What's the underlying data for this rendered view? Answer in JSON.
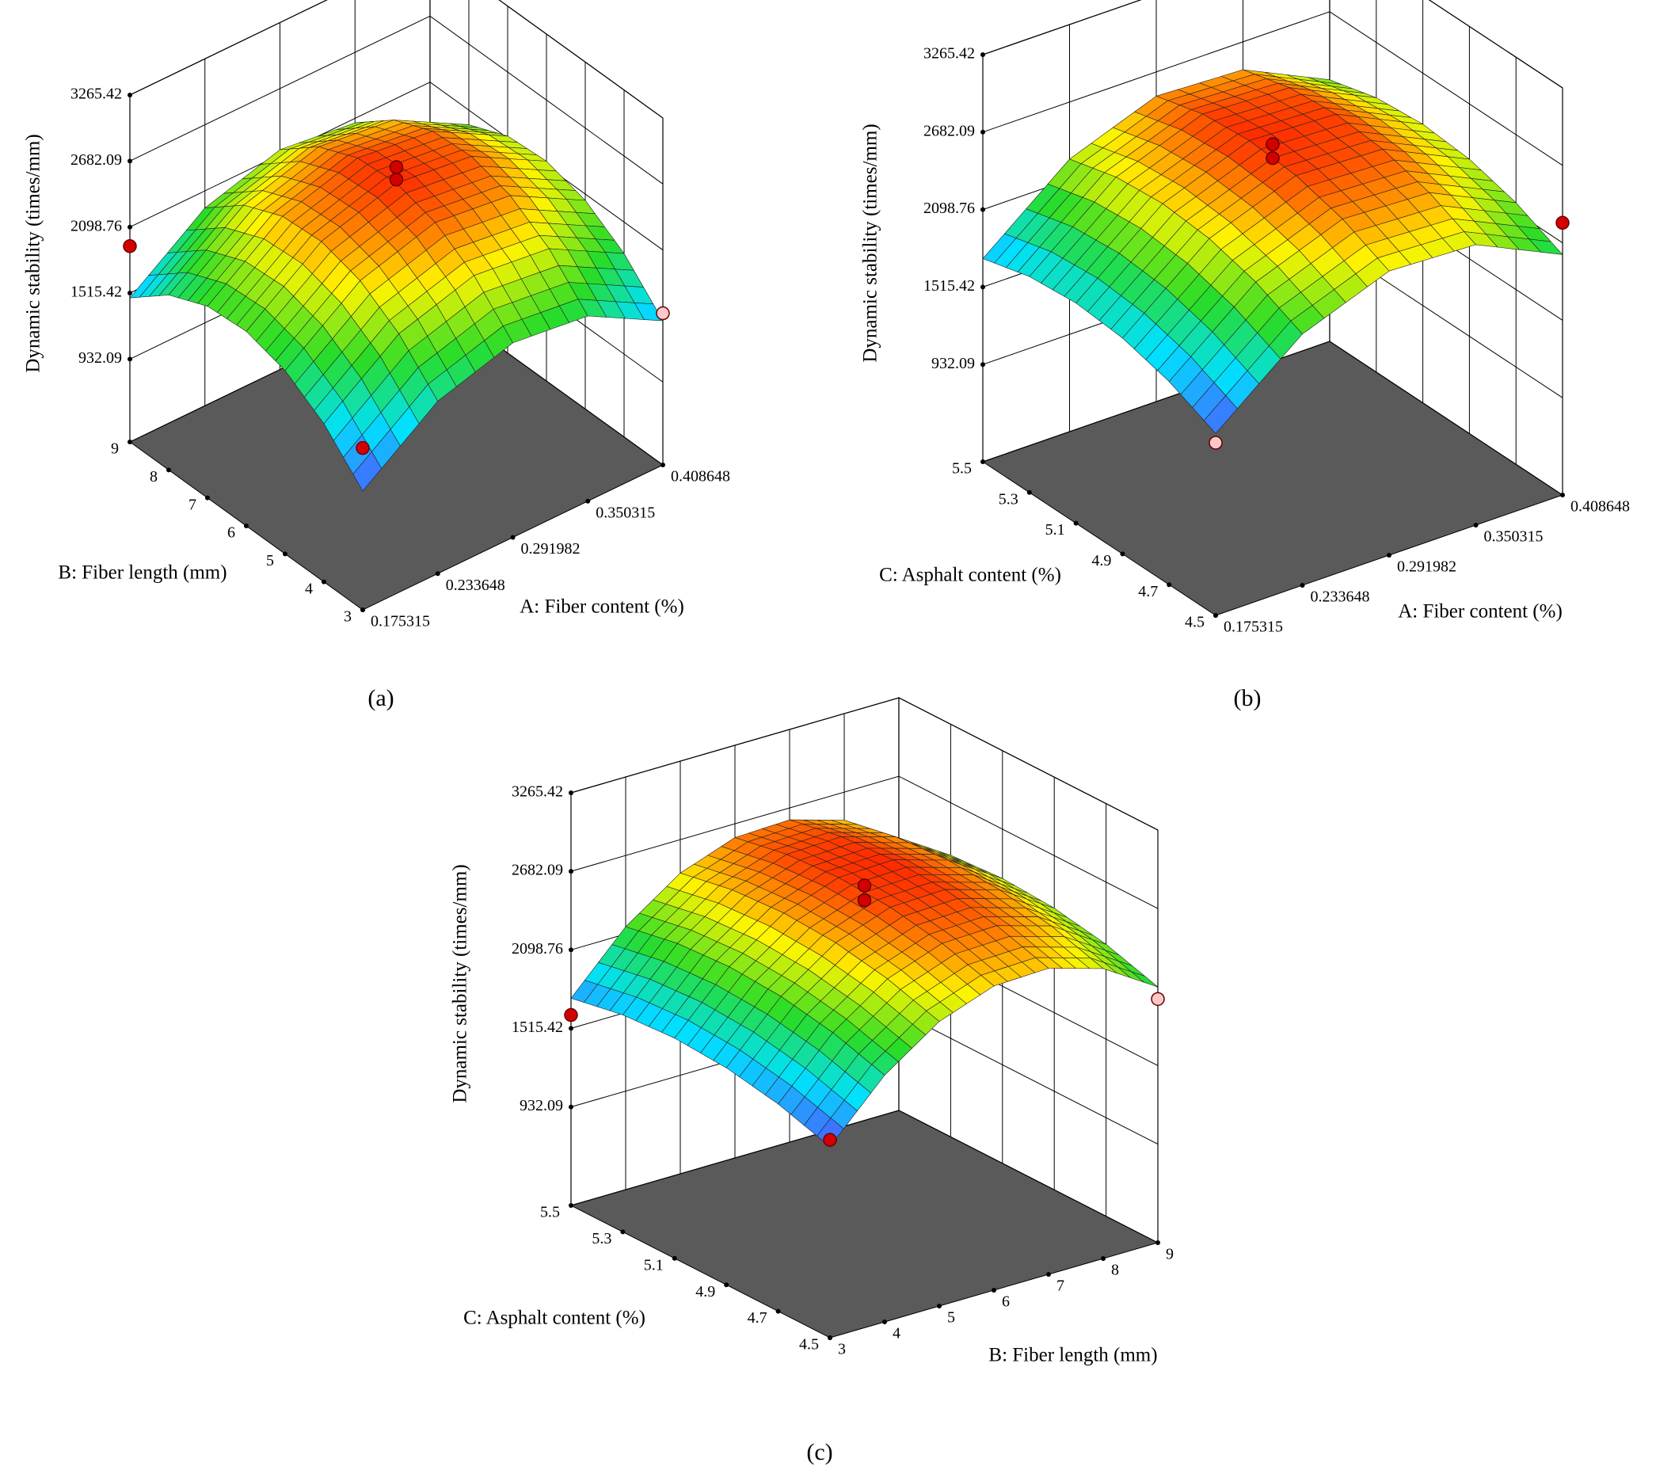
{
  "chart_data": [
    {
      "type": "surface3d",
      "label": "(a)",
      "xlabel": "A: Fiber content (%)",
      "ylabel": "B: Fiber length (mm)",
      "zlabel": "Dynamic stability (times/mm)",
      "xlim": [
        0.175315,
        0.408648
      ],
      "xticks": [
        0.175315,
        0.233648,
        0.291982,
        0.350315,
        0.408648
      ],
      "ylim": [
        3,
        9
      ],
      "yticks": [
        3,
        4,
        5,
        6,
        7,
        8,
        9
      ],
      "zlim": [
        200,
        3265.42
      ],
      "zticks": [
        932.09,
        1515.42,
        2098.76,
        2682.09,
        3265.42
      ],
      "surface_z": [
        [
          1250,
          1724,
          1919,
          1836,
          1473
        ],
        [
          1598,
          2072,
          2267,
          2184,
          1821
        ],
        [
          1820,
          2294,
          2489,
          2406,
          2043
        ],
        [
          1919,
          2393,
          2588,
          2505,
          2142
        ],
        [
          1894,
          2368,
          2563,
          2480,
          2117
        ],
        [
          1746,
          2220,
          2415,
          2332,
          1969
        ],
        [
          1473,
          1947,
          2142,
          2059,
          1696
        ]
      ],
      "points": {
        "x": [
          0.175315,
          0.291982,
          0.291982,
          0.408648,
          0.175315
        ],
        "y": [
          9,
          6,
          6,
          3,
          3
        ],
        "z": [
          1930,
          2730,
          2620,
          1540,
          1630
        ],
        "colors": [
          "#d40000",
          "#d40000",
          "#d40000",
          "#ffc8c8",
          "#d40000"
        ]
      }
    },
    {
      "type": "surface3d",
      "label": "(b)",
      "xlabel": "A: Fiber content (%)",
      "ylabel": "C: Asphalt content (%)",
      "zlabel": "Dynamic stability (times/mm)",
      "xlim": [
        0.175315,
        0.408648
      ],
      "xticks": [
        0.175315,
        0.233648,
        0.291982,
        0.350315,
        0.408648
      ],
      "ylim": [
        4.5,
        5.5
      ],
      "yticks": [
        4.5,
        4.7,
        4.9,
        5.1,
        5.3,
        5.5
      ],
      "zlim": [
        200,
        3265.42
      ],
      "zticks": [
        932.09,
        1515.42,
        2098.76,
        2682.09,
        3265.42
      ],
      "surface_z": [
        [
          1570,
          2092,
          2340,
          2312,
          2010
        ],
        [
          1730,
          2252,
          2500,
          2472,
          2170
        ],
        [
          1826,
          2348,
          2596,
          2568,
          2266
        ],
        [
          1858,
          2380,
          2628,
          2600,
          2298
        ],
        [
          1826,
          2348,
          2596,
          2568,
          2266
        ],
        [
          1730,
          2252,
          2500,
          2472,
          2170
        ]
      ],
      "points": {
        "x": [
          0.291982,
          0.291982,
          0.408648,
          0.175315
        ],
        "y": [
          5,
          5,
          4.5,
          4.5
        ],
        "z": [
          2716,
          2612,
          2250,
          1500
        ],
        "colors": [
          "#d40000",
          "#d40000",
          "#d40000",
          "#ffc8c8"
        ]
      }
    },
    {
      "type": "surface3d",
      "label": "(c)",
      "xlabel": "B: Fiber length (mm)",
      "ylabel": "C: Asphalt content (%)",
      "zlabel": "Dynamic stability (times/mm)",
      "xlim": [
        3,
        9
      ],
      "xticks": [
        3,
        4,
        5,
        6,
        7,
        8,
        9
      ],
      "ylim": [
        4.5,
        5.5
      ],
      "yticks": [
        4.5,
        4.7,
        4.9,
        5.1,
        5.3,
        5.5
      ],
      "zlim": [
        200,
        3265.42
      ],
      "zticks": [
        932.09,
        1515.42,
        2098.76,
        2682.09,
        3265.42
      ],
      "surface_z": [
        [
          1620,
          2033,
          2314,
          2460,
          2474,
          2354,
          2100
        ],
        [
          1740,
          2153,
          2434,
          2580,
          2594,
          2474,
          2220
        ],
        [
          1812,
          2225,
          2506,
          2652,
          2666,
          2546,
          2292
        ],
        [
          1836,
          2249,
          2530,
          2676,
          2690,
          2570,
          2316
        ],
        [
          1812,
          2225,
          2506,
          2652,
          2666,
          2546,
          2292
        ],
        [
          1740,
          2153,
          2434,
          2580,
          2594,
          2474,
          2220
        ]
      ],
      "points": {
        "x": [
          6,
          6,
          3,
          9,
          3
        ],
        "y": [
          5,
          5,
          5.5,
          4.5,
          4.5
        ],
        "z": [
          2715,
          2605,
          1615,
          2010,
          1670
        ],
        "colors": [
          "#d40000",
          "#d40000",
          "#d40000",
          "#ffc8c8",
          "#d40000"
        ]
      }
    }
  ]
}
